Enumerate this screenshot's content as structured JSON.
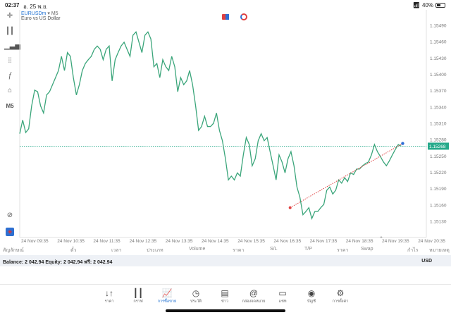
{
  "status": {
    "time": "02:37",
    "date": "อ. 25 พ.ย.",
    "battery": "40%"
  },
  "symbol": {
    "name": "EURUSDm",
    "timeframe": "M5",
    "description": "Euro vs US Dollar"
  },
  "toolbar": {
    "timeframe_label": "M5",
    "icons": [
      "crosshair-icon",
      "candlestick-icon",
      "indicators-icon",
      "objects-icon",
      "function-icon",
      "shapes-icon",
      "chart-scan-icon",
      "broker-logo-icon"
    ]
  },
  "chart_data": {
    "type": "line",
    "series": [
      {
        "name": "EURUSDm",
        "values": [
          1.15291,
          1.15316,
          1.15293,
          1.153,
          1.15342,
          1.15371,
          1.15368,
          1.15342,
          1.15329,
          1.15362,
          1.15368,
          1.15381,
          1.15394,
          1.15407,
          1.15433,
          1.15407,
          1.1544,
          1.15433,
          1.15394,
          1.15362,
          1.15381,
          1.15407,
          1.1542,
          1.15427,
          1.15433,
          1.15446,
          1.15452,
          1.15446,
          1.15427,
          1.15446,
          1.15452,
          1.15388,
          1.15427,
          1.1544,
          1.15452,
          1.15459,
          1.15446,
          1.15433,
          1.15472,
          1.15478,
          1.15459,
          1.1544,
          1.15472,
          1.15478,
          1.15465,
          1.15414,
          1.1542,
          1.15394,
          1.15427,
          1.15414,
          1.15407,
          1.15433,
          1.15414,
          1.15368,
          1.15394,
          1.15381,
          1.15388,
          1.15407,
          1.15381,
          1.15342,
          1.15297,
          1.15304,
          1.15323,
          1.15304,
          1.15304,
          1.1531,
          1.15329,
          1.15297,
          1.15278,
          1.15245,
          1.15206,
          1.15213,
          1.15206,
          1.15219,
          1.15213,
          1.15252,
          1.15284,
          1.15271,
          1.15232,
          1.15245,
          1.15278,
          1.15291,
          1.15278,
          1.15284,
          1.15258,
          1.15232,
          1.15206,
          1.15252,
          1.15239,
          1.15219,
          1.15245,
          1.15258,
          1.15232,
          1.15193,
          1.15174,
          1.15142,
          1.15148,
          1.15155,
          1.15135,
          1.15148,
          1.15148,
          1.15155,
          1.15161,
          1.15187,
          1.15193,
          1.1518,
          1.15187,
          1.15206,
          1.152,
          1.1521,
          1.15203,
          1.15219,
          1.15216,
          1.15226,
          1.15226,
          1.15232,
          1.15236,
          1.15239,
          1.15252,
          1.15271,
          1.15258,
          1.15249,
          1.15239,
          1.15232,
          1.15241,
          1.15252,
          1.15262,
          1.15271,
          1.15268
        ]
      }
    ],
    "current_price": "1.15268",
    "trade_line": {
      "open_price": 1.15155,
      "close_price": 1.15273
    },
    "y_ticks": [
      "1.15490",
      "1.15460",
      "1.15430",
      "1.15400",
      "1.15370",
      "1.15340",
      "1.15310",
      "1.15280",
      "1.15250",
      "1.15220",
      "1.15190",
      "1.15160",
      "1.15130"
    ],
    "ylim": [
      1.15115,
      1.1551
    ],
    "x_ticks": [
      "24 Nov 09:35",
      "24 Nov 10:35",
      "24 Nov 11:35",
      "24 Nov 12:35",
      "24 Nov 13:35",
      "24 Nov 14:35",
      "24 Nov 15:35",
      "24 Nov 16:35",
      "24 Nov 17:35",
      "24 Nov 18:35",
      "24 Nov 19:35",
      "24 Nov 20:35"
    ],
    "colors": {
      "line": "#3aa57a",
      "price_label": "#26a98a",
      "trade": "#e04040",
      "close_dot": "#2f6fd6"
    }
  },
  "table_headers": [
    "สัญลักษณ์",
    "ตั๋ว",
    "เวลา",
    "ประเภท",
    "Volume",
    "ราคา",
    "S/L",
    "T/P",
    "ราคา",
    "Swap",
    "กำไร",
    "หมายเหตุ"
  ],
  "account": {
    "summary": "Balance: 2 042.94 Equity: 2 042.94 ฟรี: 2 042.94",
    "currency": "USD"
  },
  "nav": [
    {
      "label": "ราคา",
      "icon": "↓↑"
    },
    {
      "label": "กราฟ",
      "icon": "┃┃"
    },
    {
      "label": "การซื้อขาย",
      "icon": "📈",
      "active": true
    },
    {
      "label": "ประวัติ",
      "icon": "◷"
    },
    {
      "label": "ข่าว",
      "icon": "▤"
    },
    {
      "label": "กล่องจดหมาย",
      "icon": "@"
    },
    {
      "label": "แชท",
      "icon": "▭"
    },
    {
      "label": "บัญชี",
      "icon": "◉"
    },
    {
      "label": "การตั้งค่า",
      "icon": "⚙"
    }
  ]
}
